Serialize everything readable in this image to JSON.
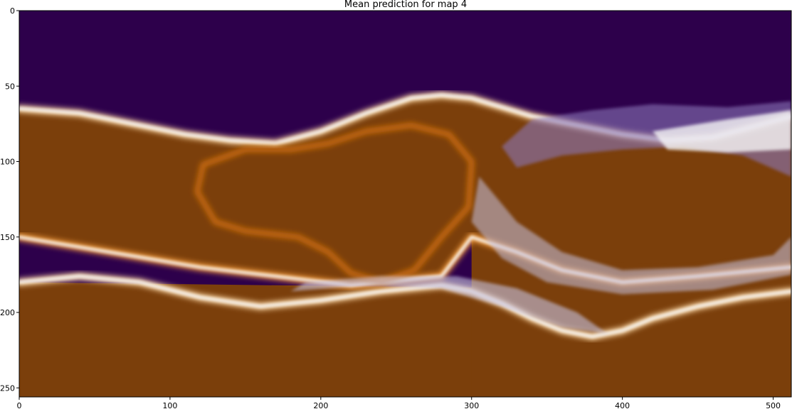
{
  "chart_data": {
    "type": "heatmap",
    "title": "Mean prediction for map 4",
    "xlabel": "",
    "ylabel": "",
    "xlim": [
      0,
      512
    ],
    "ylim": [
      256,
      0
    ],
    "x_ticks": [
      0,
      100,
      200,
      300,
      400,
      500
    ],
    "y_ticks": [
      0,
      50,
      100,
      150,
      200,
      250
    ],
    "colormap": [
      "#7b3f0b",
      "#c86a0f",
      "#f39a3b",
      "#fdd8a5",
      "#f7f7f7",
      "#c6c2e0",
      "#8a76b8",
      "#55298a",
      "#2d004b"
    ],
    "note": "Diverging PuOr-style image; low values orange-brown, high values dark purple. Region boundaries below in data units (x 0-512, y 0-256).",
    "regions": {
      "top_purple_boundary": [
        [
          0,
          65
        ],
        [
          40,
          68
        ],
        [
          80,
          76
        ],
        [
          110,
          82
        ],
        [
          140,
          86
        ],
        [
          170,
          88
        ],
        [
          200,
          80
        ],
        [
          230,
          68
        ],
        [
          260,
          58
        ],
        [
          280,
          56
        ],
        [
          300,
          58
        ],
        [
          320,
          64
        ],
        [
          340,
          70
        ],
        [
          370,
          76
        ],
        [
          400,
          82
        ],
        [
          430,
          86
        ],
        [
          460,
          84
        ],
        [
          490,
          76
        ],
        [
          512,
          70
        ]
      ],
      "band_boundary": [
        [
          0,
          180
        ],
        [
          40,
          176
        ],
        [
          80,
          180
        ],
        [
          120,
          190
        ],
        [
          160,
          196
        ],
        [
          200,
          192
        ],
        [
          240,
          186
        ],
        [
          280,
          182
        ],
        [
          300,
          186
        ],
        [
          320,
          194
        ],
        [
          340,
          204
        ],
        [
          360,
          212
        ],
        [
          380,
          216
        ],
        [
          400,
          212
        ],
        [
          420,
          204
        ],
        [
          450,
          196
        ],
        [
          480,
          190
        ],
        [
          512,
          186
        ]
      ],
      "central_brown_blob": [
        [
          205,
          88
        ],
        [
          230,
          80
        ],
        [
          260,
          76
        ],
        [
          285,
          82
        ],
        [
          300,
          100
        ],
        [
          298,
          130
        ],
        [
          280,
          150
        ],
        [
          262,
          172
        ],
        [
          240,
          180
        ],
        [
          220,
          174
        ],
        [
          205,
          160
        ],
        [
          185,
          150
        ],
        [
          150,
          146
        ],
        [
          130,
          140
        ],
        [
          118,
          120
        ],
        [
          122,
          102
        ],
        [
          150,
          92
        ],
        [
          180,
          92
        ]
      ],
      "right_lower_brown": [
        [
          300,
          150
        ],
        [
          340,
          158
        ],
        [
          380,
          166
        ],
        [
          420,
          168
        ],
        [
          460,
          166
        ],
        [
          490,
          160
        ],
        [
          512,
          156
        ],
        [
          512,
          256
        ],
        [
          300,
          256
        ]
      ],
      "left_lower_brown": [
        [
          0,
          180
        ],
        [
          512,
          186
        ],
        [
          512,
          256
        ],
        [
          0,
          256
        ]
      ]
    }
  }
}
